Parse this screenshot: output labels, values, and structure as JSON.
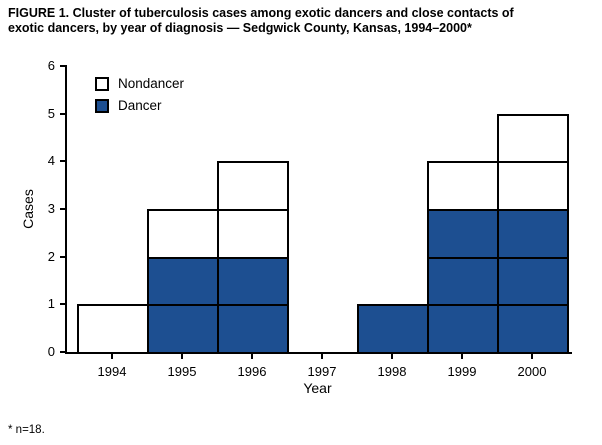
{
  "title_line1": "FIGURE 1. Cluster of tuberculosis cases among exotic dancers and close contacts of",
  "title_line2": "exotic dancers, by year of diagnosis — Sedgwick County, Kansas, 1994–2000*",
  "footnote": "* n=18.",
  "chart_data": {
    "type": "bar",
    "stacked": true,
    "unit_boxes": true,
    "title": "Cluster of tuberculosis cases among exotic dancers and close contacts of exotic dancers, by year of diagnosis — Sedgwick County, Kansas, 1994–2000",
    "categories": [
      "1994",
      "1995",
      "1996",
      "1997",
      "1998",
      "1999",
      "2000"
    ],
    "series": [
      {
        "name": "Dancer",
        "color": "#1d4f91",
        "values": [
          0,
          2,
          2,
          0,
          1,
          3,
          3
        ]
      },
      {
        "name": "Nondancer",
        "color": "#ffffff",
        "values": [
          1,
          1,
          2,
          0,
          0,
          1,
          2
        ]
      }
    ],
    "totals": [
      1,
      3,
      4,
      0,
      1,
      4,
      5
    ],
    "n_total": 18,
    "legend": [
      {
        "label": "Nondancer",
        "color": "#ffffff"
      },
      {
        "label": "Dancer",
        "color": "#1d4f91"
      }
    ],
    "legend_position": "top-left-inside",
    "xlabel": "Year",
    "ylabel": "Cases",
    "ylim": [
      0,
      6
    ],
    "yticks": [
      0,
      1,
      2,
      3,
      4,
      5,
      6
    ],
    "grid": false,
    "axis_color": "#000000"
  }
}
